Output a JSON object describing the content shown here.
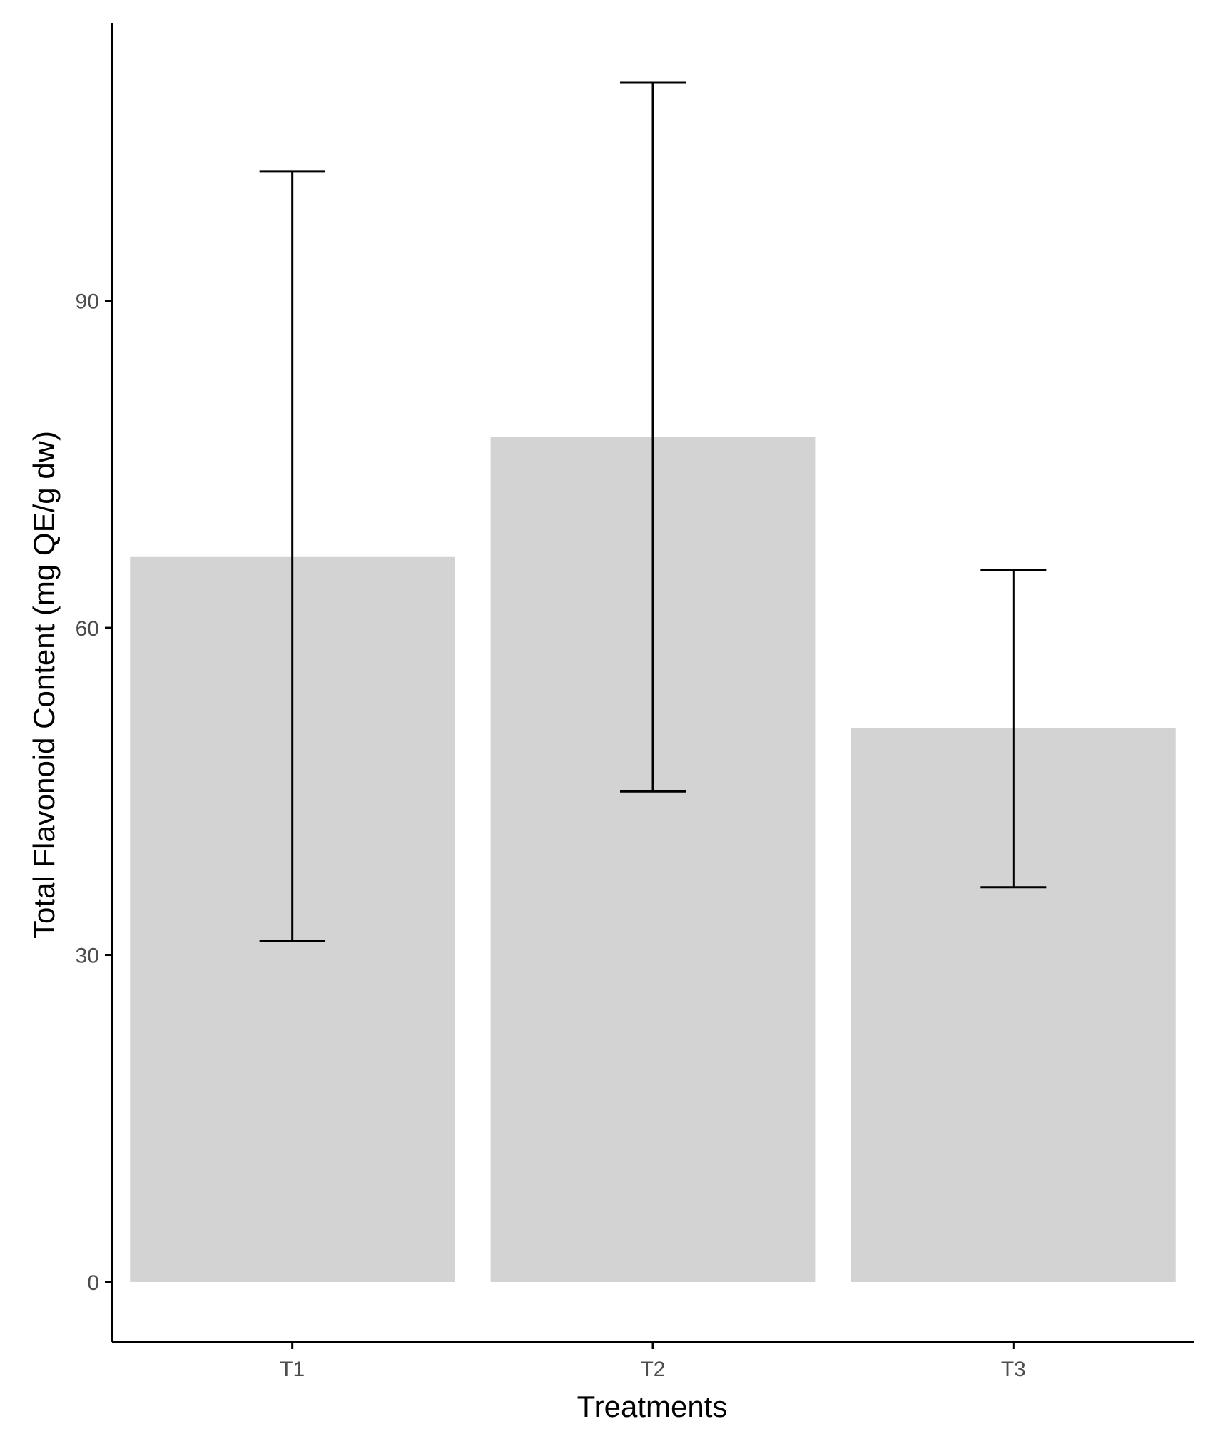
{
  "chart_data": {
    "type": "bar",
    "title": "",
    "xlabel": "Treatments",
    "ylabel": "Total Flavonoid Content (mg QE/g dw)",
    "categories": [
      "T1",
      "T2",
      "T3"
    ],
    "values": [
      66.5,
      77.5,
      50.8
    ],
    "error_low": [
      31.3,
      45.0,
      36.2
    ],
    "error_high": [
      101.9,
      110.0,
      65.3
    ],
    "yticks": [
      0,
      30,
      60,
      90
    ],
    "ylim": [
      -5.5,
      115.5
    ],
    "grid": false,
    "legend": "none",
    "bar_color": "#d3d3d3",
    "error_color": "#000000",
    "axis_color": "#000000"
  }
}
